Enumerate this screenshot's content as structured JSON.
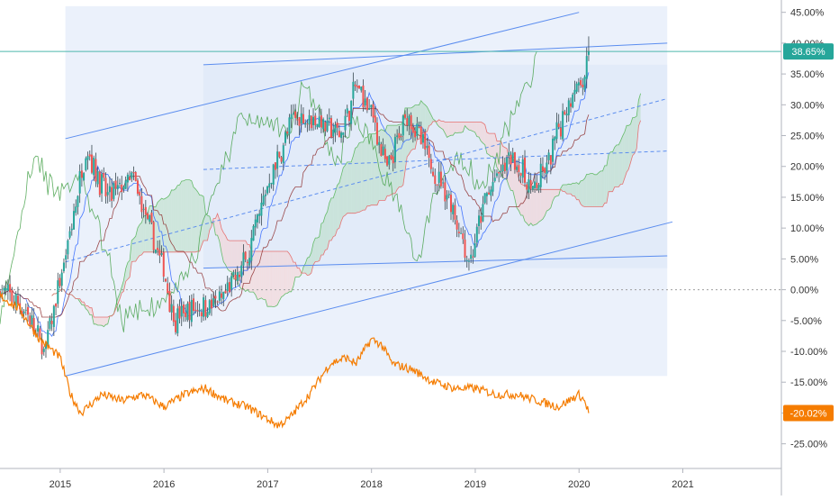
{
  "chart_data": {
    "type": "candlestick",
    "title": "",
    "xlabel": "",
    "ylabel": "",
    "y_unit": "%",
    "y_axis_side": "right",
    "ylim": [
      -29,
      47
    ],
    "xlim": [
      2014.42,
      2021.95
    ],
    "y_ticks": [
      45,
      40,
      35,
      30,
      25,
      20,
      15,
      10,
      5,
      0,
      -5,
      -10,
      -15,
      -20,
      -25
    ],
    "y_tick_labels": [
      "45.00%",
      "40.00%",
      "35.00%",
      "30.00%",
      "25.00%",
      "20.00%",
      "15.00%",
      "10.00%",
      "5.00%",
      "0.00%",
      "-5.00%",
      "-10.00%",
      "-15.00%",
      "-20.00%",
      "-25.00%"
    ],
    "x_ticks": [
      2015,
      2016,
      2017,
      2018,
      2019,
      2020,
      2021
    ],
    "x_tick_labels": [
      "2015",
      "2016",
      "2017",
      "2018",
      "2019",
      "2020",
      "2021"
    ],
    "grid": false,
    "legend": "none",
    "last_value_labels": [
      {
        "text": "38.65%",
        "value": 38.65,
        "color": "#26a69a"
      },
      {
        "text": "-20.02%",
        "value": -20.02,
        "color": "#f57c00"
      }
    ],
    "colors": {
      "up": "#26a69a",
      "down": "#ef5350",
      "wick": "#37474f",
      "channel": "#5b8def",
      "channel_fill": "#dbe6f7",
      "cloud_green": "#b7dcc3",
      "cloud_red": "#f5cfcf",
      "tenkan": "#2962ff",
      "kijun": "#8d2b2b",
      "lagging": "#43a047",
      "comparison": "#f57c00",
      "axis_text": "#333333",
      "zero_line": "#9e9e9e"
    },
    "key_points": {
      "x": [
        2014.42,
        2014.65,
        2014.85,
        2015.05,
        2015.25,
        2015.45,
        2015.7,
        2016.0,
        2016.1,
        2016.3,
        2016.55,
        2016.8,
        2017.0,
        2017.25,
        2017.45,
        2017.7,
        2017.85,
        2018.0,
        2018.15,
        2018.35,
        2018.55,
        2018.75,
        2018.95,
        2019.1,
        2019.35,
        2019.55,
        2019.7,
        2019.8,
        2019.95,
        2020.05,
        2020.1
      ],
      "close": [
        0,
        -3,
        -10,
        5,
        23,
        15,
        18,
        3,
        -5,
        -3,
        -2,
        5,
        17,
        28,
        28,
        25,
        33,
        29,
        19,
        29,
        21,
        15,
        4,
        15,
        22,
        16,
        20,
        26,
        33,
        34,
        38.65
      ]
    },
    "comparison_series": {
      "x": [
        2014.42,
        2014.6,
        2014.8,
        2015.0,
        2015.1,
        2015.2,
        2015.4,
        2015.6,
        2015.8,
        2016.0,
        2016.2,
        2016.4,
        2016.6,
        2016.8,
        2017.0,
        2017.1,
        2017.2,
        2017.4,
        2017.6,
        2017.75,
        2017.85,
        2018.0,
        2018.1,
        2018.2,
        2018.4,
        2018.6,
        2018.8,
        2019.0,
        2019.2,
        2019.4,
        2019.6,
        2019.8,
        2020.0,
        2020.05,
        2020.1
      ],
      "values": [
        -1,
        -3,
        -8,
        -11,
        -17,
        -20,
        -17,
        -18,
        -17,
        -19,
        -17,
        -16,
        -18,
        -19,
        -21,
        -22,
        -21,
        -17,
        -12,
        -11,
        -12,
        -8,
        -9,
        -12,
        -13,
        -15,
        -16,
        -16,
        -17,
        -17,
        -18,
        -19,
        -17,
        -18,
        -20.02
      ]
    },
    "channel_lines": [
      {
        "points": [
          [
            2015.05,
            24.5
          ],
          [
            2020.0,
            45
          ]
        ],
        "role": "upper"
      },
      {
        "points": [
          [
            2015.05,
            -14
          ],
          [
            2020.9,
            11
          ]
        ],
        "role": "lower"
      },
      {
        "points": [
          [
            2016.38,
            36.5
          ],
          [
            2020.85,
            40
          ]
        ],
        "role": "upper"
      },
      {
        "points": [
          [
            2016.38,
            3.5
          ],
          [
            2020.85,
            5.5
          ]
        ],
        "role": "lower"
      },
      {
        "points": [
          [
            2015.05,
            4.5
          ],
          [
            2020.85,
            31
          ]
        ],
        "role": "median"
      },
      {
        "points": [
          [
            2016.38,
            19.5
          ],
          [
            2020.85,
            22.5
          ]
        ],
        "role": "median"
      }
    ],
    "channel_rects": [
      {
        "x": [
          2015.05,
          2020.85
        ],
        "y": [
          -14,
          46
        ]
      },
      {
        "x": [
          2016.38,
          2020.85
        ],
        "y": [
          3.5,
          36.5
        ]
      }
    ],
    "horizontal_line": {
      "value": 38.65
    }
  }
}
